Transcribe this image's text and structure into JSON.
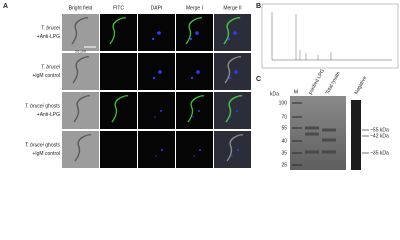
{
  "panel_a": {
    "label": "A",
    "columns": [
      "Bright field",
      "FITC",
      "DAPI",
      "Merge I",
      "Merge II"
    ],
    "rows": [
      {
        "species": "T. brucei",
        "treatment": "+Anti-LPG"
      },
      {
        "species": "T. brucei",
        "treatment": "+IgM control"
      },
      {
        "species": "T. brucei",
        "suffix": "ghosts",
        "treatment": "+Anti-LPG"
      },
      {
        "species": "T. brucei",
        "suffix": "ghosts",
        "treatment": "+IgM control"
      }
    ],
    "scale_bar": "10 μm"
  },
  "panel_b": {
    "label": "B"
  },
  "panel_c": {
    "label": "C",
    "axis_title": "kDa",
    "lanes": [
      "M",
      "purified LPG",
      "Total lysate",
      "Negative"
    ],
    "markers": [
      "100",
      "70",
      "55",
      "40",
      "35",
      "25"
    ],
    "bands": [
      "~55 kDa",
      "~42 kDa",
      "~35 kDa"
    ]
  }
}
